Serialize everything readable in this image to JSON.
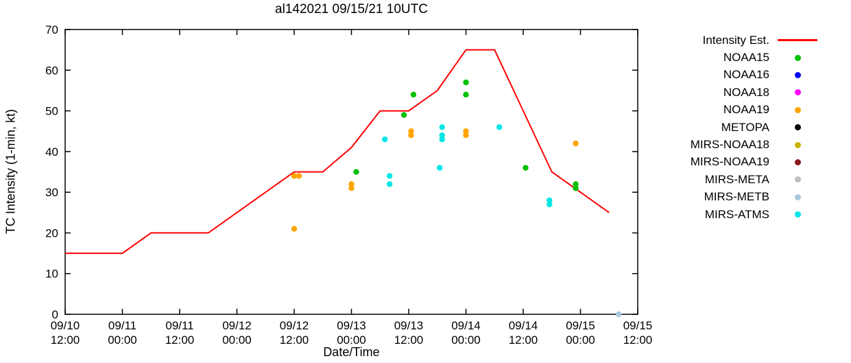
{
  "title": "al142021 09/15/21 10UTC",
  "chart_data": {
    "type": "line+scatter",
    "title": "al142021 09/15/21 10UTC",
    "xlabel": "Date/Time",
    "ylabel": "TC Intensity (1-min, kt)",
    "ylim": [
      0,
      70
    ],
    "ytick_interval": 10,
    "yticks": [
      0,
      10,
      20,
      30,
      40,
      50,
      60,
      70
    ],
    "x_hours_span": 120,
    "xticks": [
      {
        "hour": 0,
        "date": "09/10",
        "time": "12:00"
      },
      {
        "hour": 12,
        "date": "09/11",
        "time": "00:00"
      },
      {
        "hour": 24,
        "date": "09/11",
        "time": "12:00"
      },
      {
        "hour": 36,
        "date": "09/12",
        "time": "00:00"
      },
      {
        "hour": 48,
        "date": "09/12",
        "time": "12:00"
      },
      {
        "hour": 60,
        "date": "09/13",
        "time": "00:00"
      },
      {
        "hour": 72,
        "date": "09/13",
        "time": "12:00"
      },
      {
        "hour": 84,
        "date": "09/14",
        "time": "00:00"
      },
      {
        "hour": 96,
        "date": "09/14",
        "time": "12:00"
      },
      {
        "hour": 108,
        "date": "09/15",
        "time": "00:00"
      },
      {
        "hour": 120,
        "date": "09/15",
        "time": "12:00"
      }
    ],
    "grid": false,
    "legend_position": "right-outside",
    "legend": [
      {
        "label": "Intensity Est.",
        "color": "#ff0000",
        "marker": "line"
      },
      {
        "label": "NOAA15",
        "color": "#00c000",
        "marker": "dot"
      },
      {
        "label": "NOAA16",
        "color": "#0000ff",
        "marker": "dot"
      },
      {
        "label": "NOAA18",
        "color": "#ff00ff",
        "marker": "dot"
      },
      {
        "label": "NOAA19",
        "color": "#ffa500",
        "marker": "dot"
      },
      {
        "label": "METOPA",
        "color": "#000000",
        "marker": "dot"
      },
      {
        "label": "MIRS-NOAA18",
        "color": "#c8b400",
        "marker": "dot"
      },
      {
        "label": "MIRS-NOAA19",
        "color": "#8b1a1a",
        "marker": "dot"
      },
      {
        "label": "MIRS-META",
        "color": "#bebebe",
        "marker": "dot"
      },
      {
        "label": "MIRS-METB",
        "color": "#aac8dc",
        "marker": "dot"
      },
      {
        "label": "MIRS-ATMS",
        "color": "#00e6e6",
        "marker": "dot"
      }
    ],
    "intensity_line": {
      "name": "Intensity Est.",
      "color": "#ff0000",
      "points_hour_kt": [
        [
          0,
          15
        ],
        [
          12,
          15
        ],
        [
          18,
          20
        ],
        [
          30,
          20
        ],
        [
          48,
          35
        ],
        [
          54,
          35
        ],
        [
          60,
          41
        ],
        [
          66,
          50
        ],
        [
          72,
          50
        ],
        [
          78,
          55
        ],
        [
          84,
          65
        ],
        [
          90,
          65
        ],
        [
          102,
          35
        ],
        [
          114,
          25
        ]
      ]
    },
    "scatter_series": [
      {
        "name": "NOAA15",
        "color": "#00c000",
        "points_hour_kt": [
          [
            61,
            35
          ],
          [
            71,
            49
          ],
          [
            73,
            54
          ],
          [
            84,
            57
          ],
          [
            84,
            54
          ],
          [
            96.5,
            36
          ],
          [
            107,
            32
          ],
          [
            107,
            31
          ]
        ]
      },
      {
        "name": "NOAA16",
        "color": "#0000ff",
        "points_hour_kt": []
      },
      {
        "name": "NOAA18",
        "color": "#ff00ff",
        "points_hour_kt": []
      },
      {
        "name": "NOAA19",
        "color": "#ffa500",
        "points_hour_kt": [
          [
            48,
            34
          ],
          [
            49,
            34
          ],
          [
            48,
            21
          ],
          [
            60,
            32
          ],
          [
            60,
            31
          ],
          [
            72.5,
            45
          ],
          [
            72.5,
            44
          ],
          [
            84,
            45
          ],
          [
            84,
            44
          ],
          [
            107,
            42
          ]
        ]
      },
      {
        "name": "METOPA",
        "color": "#000000",
        "points_hour_kt": []
      },
      {
        "name": "MIRS-NOAA18",
        "color": "#c8b400",
        "points_hour_kt": []
      },
      {
        "name": "MIRS-NOAA19",
        "color": "#8b1a1a",
        "points_hour_kt": []
      },
      {
        "name": "MIRS-META",
        "color": "#bebebe",
        "points_hour_kt": []
      },
      {
        "name": "MIRS-METB",
        "color": "#aac8dc",
        "points_hour_kt": [
          [
            116,
            0
          ]
        ]
      },
      {
        "name": "MIRS-ATMS",
        "color": "#00e6e6",
        "points_hour_kt": [
          [
            67,
            43
          ],
          [
            68,
            34
          ],
          [
            68,
            32
          ],
          [
            78.5,
            36
          ],
          [
            79,
            46
          ],
          [
            79,
            44
          ],
          [
            79,
            43
          ],
          [
            91,
            46
          ],
          [
            101.5,
            28
          ],
          [
            101.5,
            27
          ]
        ]
      }
    ]
  }
}
